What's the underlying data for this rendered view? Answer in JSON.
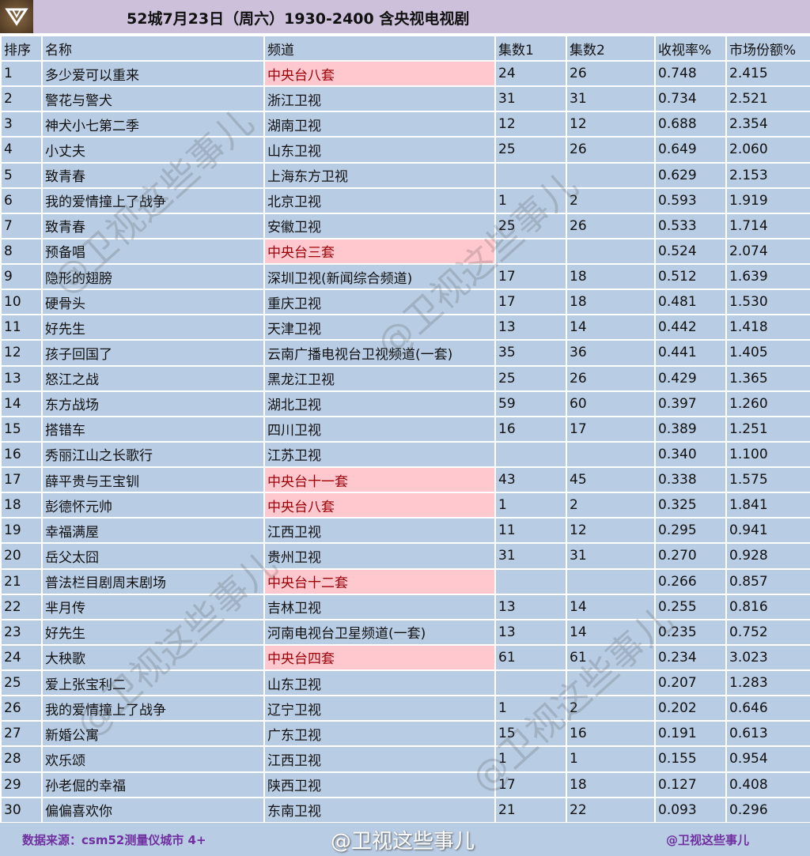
{
  "title": "52城7月23日（周六）1930-2400 含央视电视剧",
  "headers": [
    "排序",
    "名称",
    "频道",
    "集数1",
    "集数2",
    "收视率%",
    "市场份额%"
  ],
  "rows": [
    [
      "1",
      "多少爱可以重来",
      "中央台八套",
      "24",
      "26",
      "0.748",
      "2.415"
    ],
    [
      "2",
      "警花与警犬",
      "浙江卫视",
      "31",
      "31",
      "0.734",
      "2.521"
    ],
    [
      "3",
      "神犬小七第二季",
      "湖南卫视",
      "12",
      "12",
      "0.688",
      "2.354"
    ],
    [
      "4",
      "小丈夫",
      "山东卫视",
      "25",
      "26",
      "0.649",
      "2.060"
    ],
    [
      "5",
      "致青春",
      "上海东方卫视",
      "",
      "",
      "0.629",
      "2.153"
    ],
    [
      "6",
      "我的爱情撞上了战争",
      "北京卫视",
      "1",
      "2",
      "0.593",
      "1.919"
    ],
    [
      "7",
      "致青春",
      "安徽卫视",
      "25",
      "26",
      "0.533",
      "1.714"
    ],
    [
      "8",
      "预备唱",
      "中央台三套",
      "",
      "",
      "0.524",
      "2.074"
    ],
    [
      "9",
      "隐形的翅膀",
      "深圳卫视(新闻综合频道)",
      "17",
      "18",
      "0.512",
      "1.639"
    ],
    [
      "10",
      "硬骨头",
      "重庆卫视",
      "17",
      "18",
      "0.481",
      "1.530"
    ],
    [
      "11",
      "好先生",
      "天津卫视",
      "13",
      "14",
      "0.442",
      "1.418"
    ],
    [
      "12",
      "孩子回国了",
      "云南广播电视台卫视频道(一套)",
      "35",
      "36",
      "0.441",
      "1.405"
    ],
    [
      "13",
      "怒江之战",
      "黑龙江卫视",
      "25",
      "26",
      "0.429",
      "1.365"
    ],
    [
      "14",
      "东方战场",
      "湖北卫视",
      "59",
      "60",
      "0.397",
      "1.260"
    ],
    [
      "15",
      "搭错车",
      "四川卫视",
      "16",
      "17",
      "0.389",
      "1.251"
    ],
    [
      "16",
      "秀丽江山之长歌行",
      "江苏卫视",
      "",
      "",
      "0.340",
      "1.100"
    ],
    [
      "17",
      "薛平贵与王宝钏",
      "中央台十一套",
      "43",
      "45",
      "0.338",
      "1.575"
    ],
    [
      "18",
      "彭德怀元帅",
      "中央台八套",
      "1",
      "2",
      "0.325",
      "1.841"
    ],
    [
      "19",
      "幸福满屋",
      "江西卫视",
      "11",
      "12",
      "0.295",
      "0.941"
    ],
    [
      "20",
      "岳父太囧",
      "贵州卫视",
      "31",
      "31",
      "0.270",
      "0.928"
    ],
    [
      "21",
      "普法栏目剧周末剧场",
      "中央台十二套",
      "",
      "",
      "0.266",
      "0.857"
    ],
    [
      "22",
      "芈月传",
      "吉林卫视",
      "13",
      "14",
      "0.255",
      "0.816"
    ],
    [
      "23",
      "好先生",
      "河南电视台卫星频道(一套)",
      "13",
      "14",
      "0.235",
      "0.752"
    ],
    [
      "24",
      "大秧歌",
      "中央台四套",
      "61",
      "61",
      "0.234",
      "3.023"
    ],
    [
      "25",
      "爱上张宝利二",
      "山东卫视",
      "",
      "",
      "0.207",
      "1.283"
    ],
    [
      "26",
      "我的爱情撞上了战争",
      "辽宁卫视",
      "1",
      "2",
      "0.202",
      "0.646"
    ],
    [
      "27",
      "新婚公寓",
      "广东卫视",
      "15",
      "16",
      "0.191",
      "0.613"
    ],
    [
      "28",
      "欢乐颂",
      "江西卫视",
      "1",
      "1",
      "0.155",
      "0.954"
    ],
    [
      "29",
      "孙老倔的幸福",
      "陕西卫视",
      "17",
      "18",
      "0.127",
      "0.408"
    ],
    [
      "30",
      "偏偏喜欢你",
      "东南卫视",
      "21",
      "22",
      "0.093",
      "0.296"
    ]
  ],
  "highlight_color": "#ffc7ce",
  "footer": {
    "source": "数据来源：csm52测量仪城市 4+",
    "watermark": "@卫视这些事儿",
    "handle": "@卫视这些事儿"
  }
}
